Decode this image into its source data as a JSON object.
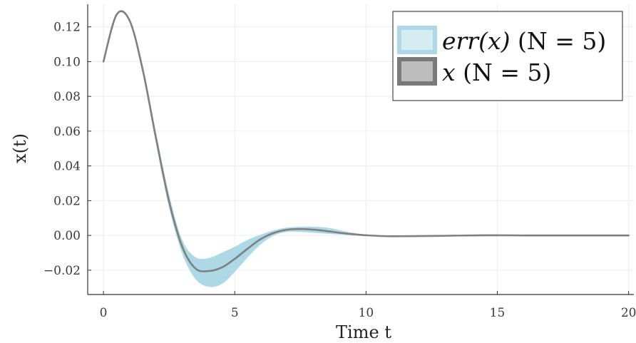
{
  "chart_data": {
    "type": "line",
    "xlabel": "Time t",
    "ylabel": "x(t)",
    "xlim": [
      -0.6,
      20.2
    ],
    "ylim": [
      -0.034,
      0.133
    ],
    "x_ticks": [
      0,
      5,
      10,
      15,
      20
    ],
    "x_tick_labels": [
      "0",
      "5",
      "10",
      "15",
      "20"
    ],
    "y_ticks": [
      -0.02,
      0.0,
      0.02,
      0.04,
      0.06,
      0.08,
      0.1,
      0.12
    ],
    "y_tick_labels": [
      "−0.02",
      "0.00",
      "0.02",
      "0.04",
      "0.06",
      "0.08",
      "0.10",
      "0.12"
    ],
    "grid": true,
    "legend_position": "top-right",
    "series": [
      {
        "name": "err(x) (N = 5)",
        "kind": "band",
        "color": "#add8e6",
        "x": [
          0,
          0.5,
          1,
          1.5,
          2,
          2.5,
          3,
          3.5,
          4,
          4.5,
          5,
          5.5,
          6,
          6.5,
          7,
          7.5,
          8,
          8.5,
          9,
          9.5,
          10,
          10.5,
          11,
          12,
          13,
          14,
          15,
          16,
          17,
          18,
          19,
          20
        ],
        "lower": [
          0.1,
          0.1265,
          0.1225,
          0.093,
          0.053,
          0.016,
          -0.0105,
          -0.025,
          -0.0295,
          -0.028,
          -0.021,
          -0.0125,
          -0.005,
          0.0,
          0.002,
          0.002,
          0.0015,
          0.001,
          0.0005,
          0.0,
          -0.0003,
          -0.0005,
          -0.0006,
          -0.0005,
          -0.0003,
          -0.0001,
          0.0,
          0.0,
          0.0,
          0.0,
          0.0,
          0.0
        ],
        "upper": [
          0.1,
          0.1275,
          0.1245,
          0.0975,
          0.0595,
          0.0235,
          -0.0025,
          -0.0125,
          -0.013,
          -0.01,
          -0.0065,
          -0.0025,
          0.0005,
          0.003,
          0.0045,
          0.005,
          0.005,
          0.0045,
          0.003,
          0.0015,
          0.0005,
          0.0,
          -0.0002,
          -0.0003,
          -0.0001,
          0.0,
          0.0,
          0.0,
          0.0,
          0.0,
          0.0,
          0.0
        ]
      },
      {
        "name": "x (N = 5)",
        "kind": "line",
        "color": "#808080",
        "x": [
          0,
          0.5,
          1,
          1.5,
          2,
          2.5,
          3,
          3.5,
          4,
          4.5,
          5,
          5.5,
          6,
          6.5,
          7,
          7.5,
          8,
          8.5,
          9,
          9.5,
          10,
          10.5,
          11,
          12,
          13,
          14,
          15,
          16,
          17,
          18,
          19,
          20
        ],
        "y": [
          0.1,
          0.127,
          0.1235,
          0.095,
          0.056,
          0.0195,
          -0.0065,
          -0.019,
          -0.0205,
          -0.0185,
          -0.0135,
          -0.0075,
          -0.002,
          0.0015,
          0.0033,
          0.0037,
          0.0033,
          0.0025,
          0.0015,
          0.0007,
          0.0001,
          -0.0003,
          -0.0005,
          -0.0004,
          -0.0002,
          0.0,
          0.0001,
          0.0,
          0.0,
          0.0,
          0.0,
          0.0
        ]
      }
    ],
    "legend": [
      {
        "math": "err(x)",
        "paren": "(N = 5)",
        "fill": "#d6ecf3",
        "stroke": "#add8e6"
      },
      {
        "math": "x",
        "paren": "(N = 5)",
        "fill": "#bdbdbd",
        "stroke": "#7a7a7a"
      }
    ]
  }
}
